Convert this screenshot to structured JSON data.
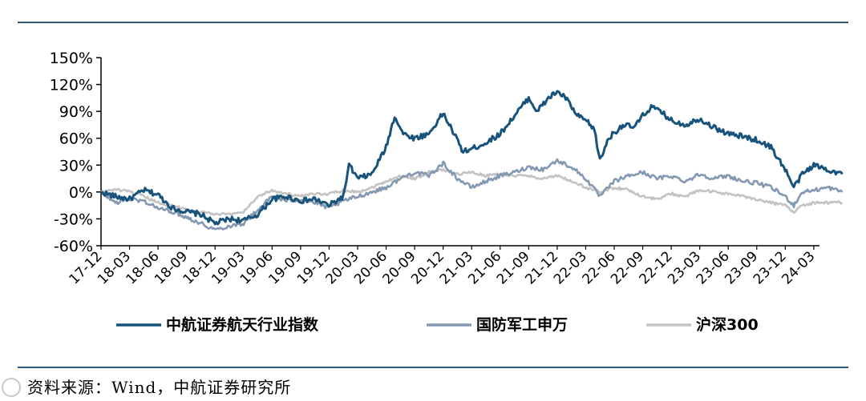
{
  "chart_data": {
    "type": "line",
    "ylim": [
      -0.6,
      1.5
    ],
    "y_ticks": [
      "150%",
      "120%",
      "90%",
      "60%",
      "30%",
      "0%",
      "-30%",
      "-60%"
    ],
    "y_tick_values": [
      1.5,
      1.2,
      0.9,
      0.6,
      0.3,
      0.0,
      -0.3,
      -0.6
    ],
    "x_ticks": [
      "17-12",
      "18-03",
      "18-06",
      "18-09",
      "18-12",
      "19-03",
      "19-06",
      "19-09",
      "19-12",
      "20-03",
      "20-06",
      "20-09",
      "20-12",
      "21-03",
      "21-06",
      "21-09",
      "21-12",
      "22-03",
      "22-06",
      "22-09",
      "22-12",
      "23-03",
      "23-06",
      "23-09",
      "23-12",
      "24-03"
    ],
    "legend_position": "bottom",
    "grid": false,
    "series": [
      {
        "name": "中航证券航天行业指数",
        "color": "#17537a",
        "points": [
          [
            0,
            0.0
          ],
          [
            0.5,
            -0.05
          ],
          [
            1,
            -0.08
          ],
          [
            1.5,
            0.02
          ],
          [
            2,
            -0.03
          ],
          [
            2.5,
            -0.18
          ],
          [
            3,
            -0.22
          ],
          [
            3.5,
            -0.25
          ],
          [
            4,
            -0.35
          ],
          [
            4.5,
            -0.3
          ],
          [
            5,
            -0.32
          ],
          [
            5.5,
            -0.25
          ],
          [
            6,
            -0.08
          ],
          [
            6.5,
            -0.05
          ],
          [
            7,
            -0.1
          ],
          [
            7.5,
            -0.08
          ],
          [
            8,
            -0.15
          ],
          [
            8.5,
            -0.05
          ],
          [
            8.7,
            0.3
          ],
          [
            9,
            0.15
          ],
          [
            9.5,
            0.2
          ],
          [
            10,
            0.5
          ],
          [
            10.3,
            0.85
          ],
          [
            10.6,
            0.65
          ],
          [
            11,
            0.6
          ],
          [
            11.5,
            0.65
          ],
          [
            12,
            0.88
          ],
          [
            12.3,
            0.7
          ],
          [
            12.7,
            0.45
          ],
          [
            13,
            0.48
          ],
          [
            13.5,
            0.55
          ],
          [
            14,
            0.65
          ],
          [
            14.5,
            0.85
          ],
          [
            15,
            1.05
          ],
          [
            15.3,
            0.9
          ],
          [
            15.7,
            1.05
          ],
          [
            16,
            1.12
          ],
          [
            16.3,
            1.05
          ],
          [
            16.7,
            0.85
          ],
          [
            17,
            0.8
          ],
          [
            17.3,
            0.7
          ],
          [
            17.5,
            0.35
          ],
          [
            17.8,
            0.6
          ],
          [
            18.3,
            0.75
          ],
          [
            18.7,
            0.72
          ],
          [
            19,
            0.85
          ],
          [
            19.3,
            0.95
          ],
          [
            19.7,
            0.88
          ],
          [
            20,
            0.8
          ],
          [
            20.5,
            0.75
          ],
          [
            21,
            0.82
          ],
          [
            21.5,
            0.72
          ],
          [
            22,
            0.65
          ],
          [
            22.5,
            0.62
          ],
          [
            23,
            0.58
          ],
          [
            23.5,
            0.5
          ],
          [
            24,
            0.25
          ],
          [
            24.3,
            0.05
          ],
          [
            24.6,
            0.2
          ],
          [
            25,
            0.3
          ],
          [
            25.5,
            0.25
          ],
          [
            26,
            0.2
          ]
        ]
      },
      {
        "name": "国防军工申万",
        "color": "#8499b1",
        "points": [
          [
            0,
            0.0
          ],
          [
            0.5,
            -0.12
          ],
          [
            1,
            -0.08
          ],
          [
            1.5,
            -0.1
          ],
          [
            2,
            -0.18
          ],
          [
            2.5,
            -0.22
          ],
          [
            3,
            -0.28
          ],
          [
            3.5,
            -0.35
          ],
          [
            4,
            -0.42
          ],
          [
            4.5,
            -0.38
          ],
          [
            5,
            -0.35
          ],
          [
            5.5,
            -0.2
          ],
          [
            6,
            -0.05
          ],
          [
            6.5,
            -0.1
          ],
          [
            7,
            -0.08
          ],
          [
            7.5,
            -0.12
          ],
          [
            8,
            -0.18
          ],
          [
            8.5,
            -0.1
          ],
          [
            9,
            -0.05
          ],
          [
            9.5,
            0.0
          ],
          [
            10,
            0.05
          ],
          [
            10.5,
            0.15
          ],
          [
            11,
            0.22
          ],
          [
            11.5,
            0.18
          ],
          [
            12,
            0.32
          ],
          [
            12.5,
            0.15
          ],
          [
            13,
            0.05
          ],
          [
            13.5,
            0.12
          ],
          [
            14,
            0.18
          ],
          [
            14.5,
            0.22
          ],
          [
            15,
            0.28
          ],
          [
            15.5,
            0.25
          ],
          [
            16,
            0.35
          ],
          [
            16.5,
            0.28
          ],
          [
            17,
            0.15
          ],
          [
            17.5,
            -0.05
          ],
          [
            18,
            0.12
          ],
          [
            18.5,
            0.18
          ],
          [
            19,
            0.22
          ],
          [
            19.5,
            0.15
          ],
          [
            20,
            0.18
          ],
          [
            20.5,
            0.12
          ],
          [
            21,
            0.2
          ],
          [
            21.5,
            0.15
          ],
          [
            22,
            0.18
          ],
          [
            22.5,
            0.12
          ],
          [
            23,
            0.1
          ],
          [
            23.5,
            0.05
          ],
          [
            24,
            -0.05
          ],
          [
            24.3,
            -0.15
          ],
          [
            24.6,
            0.0
          ],
          [
            25,
            0.02
          ],
          [
            25.5,
            0.05
          ],
          [
            26,
            0.0
          ]
        ]
      },
      {
        "name": "沪深300",
        "color": "#c3c3c3",
        "points": [
          [
            0,
            0.0
          ],
          [
            0.5,
            0.03
          ],
          [
            1,
            0.0
          ],
          [
            1.5,
            -0.05
          ],
          [
            2,
            -0.12
          ],
          [
            2.5,
            -0.15
          ],
          [
            3,
            -0.2
          ],
          [
            3.5,
            -0.22
          ],
          [
            4,
            -0.25
          ],
          [
            4.5,
            -0.25
          ],
          [
            5,
            -0.22
          ],
          [
            5.5,
            -0.05
          ],
          [
            6,
            0.02
          ],
          [
            6.5,
            -0.02
          ],
          [
            7,
            -0.05
          ],
          [
            7.5,
            -0.02
          ],
          [
            8,
            -0.02
          ],
          [
            8.5,
            0.02
          ],
          [
            9,
            0.0
          ],
          [
            9.5,
            0.05
          ],
          [
            10,
            0.12
          ],
          [
            10.5,
            0.18
          ],
          [
            11,
            0.15
          ],
          [
            11.5,
            0.22
          ],
          [
            12,
            0.25
          ],
          [
            12.5,
            0.2
          ],
          [
            13,
            0.22
          ],
          [
            13.5,
            0.18
          ],
          [
            14,
            0.2
          ],
          [
            14.5,
            0.18
          ],
          [
            15,
            0.18
          ],
          [
            15.5,
            0.15
          ],
          [
            16,
            0.18
          ],
          [
            16.5,
            0.12
          ],
          [
            17,
            0.05
          ],
          [
            17.5,
            0.0
          ],
          [
            18,
            0.05
          ],
          [
            18.5,
            0.02
          ],
          [
            19,
            -0.05
          ],
          [
            19.5,
            -0.08
          ],
          [
            20,
            -0.02
          ],
          [
            20.5,
            -0.05
          ],
          [
            21,
            0.02
          ],
          [
            21.5,
            0.0
          ],
          [
            22,
            -0.02
          ],
          [
            22.5,
            -0.05
          ],
          [
            23,
            -0.08
          ],
          [
            23.5,
            -0.12
          ],
          [
            24,
            -0.15
          ],
          [
            24.3,
            -0.22
          ],
          [
            24.6,
            -0.15
          ],
          [
            25,
            -0.12
          ],
          [
            25.5,
            -0.12
          ],
          [
            26,
            -0.12
          ]
        ]
      }
    ]
  },
  "source": "资料来源：Wind，中航证券研究所"
}
